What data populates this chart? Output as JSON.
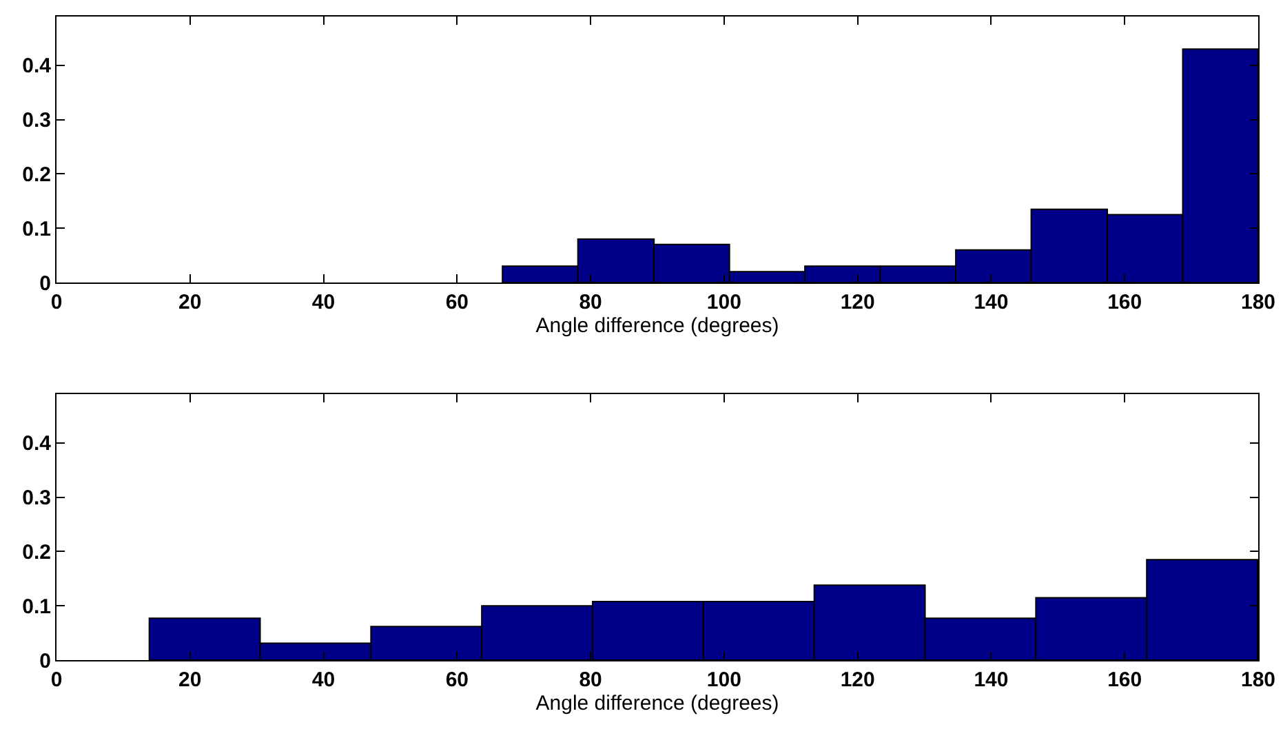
{
  "chart_data": [
    {
      "type": "histogram",
      "xlabel": "Angle difference (degrees)",
      "bins": [
        66.8,
        78.1,
        89.5,
        100.8,
        112.1,
        123.4,
        134.7,
        146.0,
        157.4,
        168.7,
        180.0
      ],
      "values": [
        0.03,
        0.08,
        0.07,
        0.02,
        0.03,
        0.03,
        0.06,
        0.135,
        0.125,
        0.43
      ],
      "color": "#000088",
      "xlim": [
        0,
        180
      ],
      "xticks": [
        0,
        20,
        40,
        60,
        80,
        100,
        120,
        140,
        160,
        180
      ],
      "ylim": [
        0,
        0.49
      ],
      "yticks": [
        0,
        0.1,
        0.2,
        0.3,
        0.4
      ],
      "grid": false
    },
    {
      "type": "histogram",
      "xlabel": "Angle difference (degrees)",
      "bins": [
        13.9,
        30.5,
        47.1,
        63.7,
        80.3,
        96.9,
        113.5,
        130.1,
        146.7,
        163.3,
        179.9
      ],
      "values": [
        0.077,
        0.031,
        0.062,
        0.1,
        0.108,
        0.108,
        0.138,
        0.077,
        0.115,
        0.185
      ],
      "color": "#000088",
      "xlim": [
        0,
        180
      ],
      "xticks": [
        0,
        20,
        40,
        60,
        80,
        100,
        120,
        140,
        160,
        180
      ],
      "ylim": [
        0,
        0.49
      ],
      "yticks": [
        0,
        0.1,
        0.2,
        0.3,
        0.4
      ],
      "grid": false
    }
  ]
}
